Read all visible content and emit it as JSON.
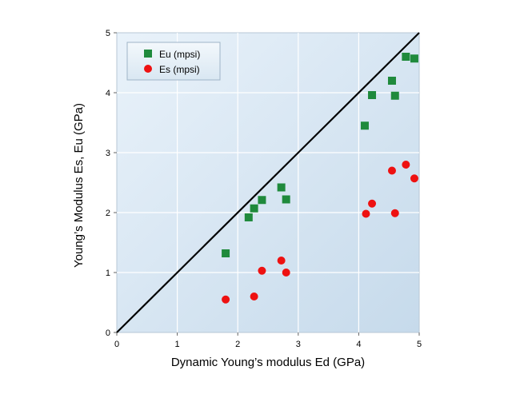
{
  "chart_data": {
    "type": "scatter",
    "xlabel": "Dynamic Young’s modulus Ed (GPa)",
    "ylabel": "Young’s Modulus Es, Eu (GPa)",
    "xlim": [
      0,
      5
    ],
    "ylim": [
      0,
      5
    ],
    "xticks": [
      "0",
      "1",
      "2",
      "3",
      "4",
      "5"
    ],
    "yticks": [
      "0",
      "1",
      "2",
      "3",
      "4",
      "5"
    ],
    "grid": true,
    "legend_position": "top-left",
    "reference_line": {
      "type": "y=x",
      "color": "#000000"
    },
    "series": [
      {
        "name": "Eu (mpsi)",
        "marker": "square",
        "color": "#1f8a3c",
        "points": [
          [
            1.8,
            1.32
          ],
          [
            2.18,
            1.92
          ],
          [
            2.27,
            2.07
          ],
          [
            2.4,
            2.21
          ],
          [
            2.72,
            2.42
          ],
          [
            2.8,
            2.22
          ],
          [
            4.1,
            3.45
          ],
          [
            4.22,
            3.96
          ],
          [
            4.55,
            4.2
          ],
          [
            4.6,
            3.95
          ],
          [
            4.78,
            4.6
          ],
          [
            4.92,
            4.57
          ]
        ]
      },
      {
        "name": "Es (mpsi)",
        "marker": "circle",
        "color": "#ee1111",
        "points": [
          [
            1.8,
            0.55
          ],
          [
            2.27,
            0.6
          ],
          [
            2.4,
            1.03
          ],
          [
            2.72,
            1.2
          ],
          [
            2.8,
            1.0
          ],
          [
            4.12,
            1.98
          ],
          [
            4.22,
            2.15
          ],
          [
            4.55,
            2.7
          ],
          [
            4.6,
            1.99
          ],
          [
            4.78,
            2.8
          ],
          [
            4.92,
            2.57
          ]
        ]
      }
    ]
  }
}
